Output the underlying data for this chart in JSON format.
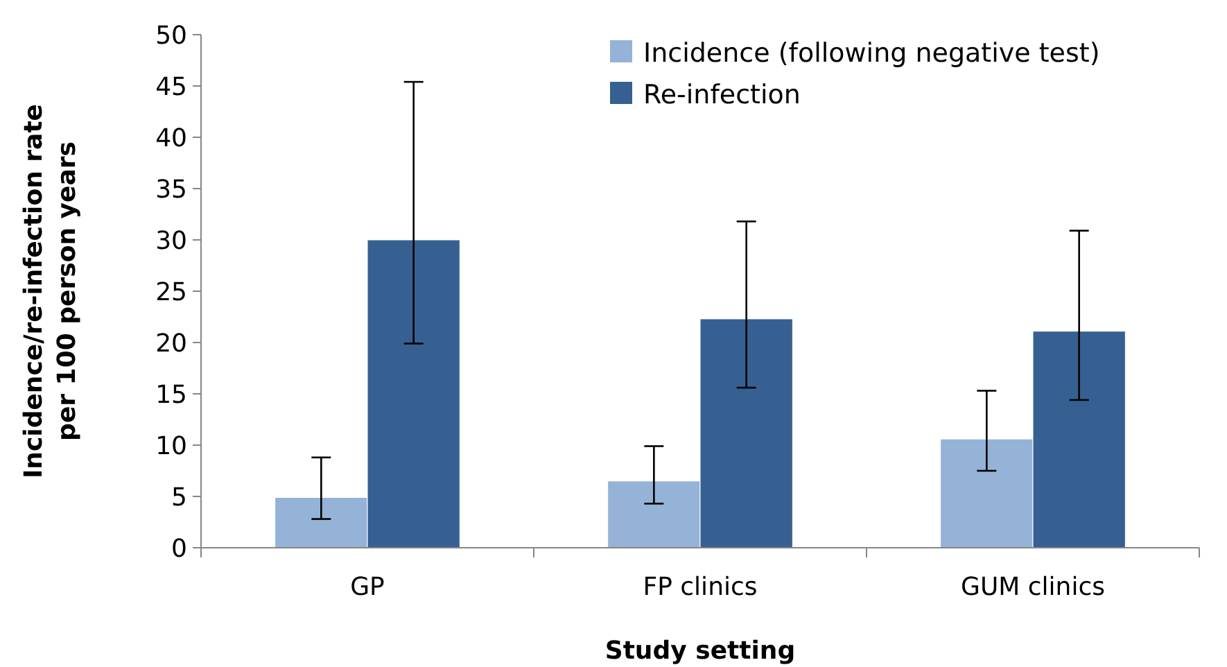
{
  "chart_data": {
    "type": "bar",
    "xlabel": "Study setting",
    "ylabel": "Incidence/re-infection rate per 100 person years",
    "categories": [
      "GP",
      "FP clinics",
      "GUM clinics"
    ],
    "series": [
      {
        "name": "Incidence (following negative test)",
        "color": "#95b3d7",
        "values": [
          4.9,
          6.5,
          10.6
        ],
        "errors": [
          [
            2.8,
            8.8
          ],
          [
            4.3,
            9.9
          ],
          [
            7.5,
            15.3
          ]
        ]
      },
      {
        "name": "Re-infection",
        "color": "#366092",
        "values": [
          30,
          22.3,
          21.1
        ],
        "errors": [
          [
            19.9,
            45.4
          ],
          [
            15.6,
            31.8
          ],
          [
            14.4,
            30.9
          ]
        ]
      }
    ],
    "ylim": [
      0,
      50
    ],
    "yticks": [
      0,
      5,
      10,
      15,
      20,
      25,
      30,
      35,
      40,
      45,
      50
    ],
    "grid": false,
    "legend": "top right"
  }
}
